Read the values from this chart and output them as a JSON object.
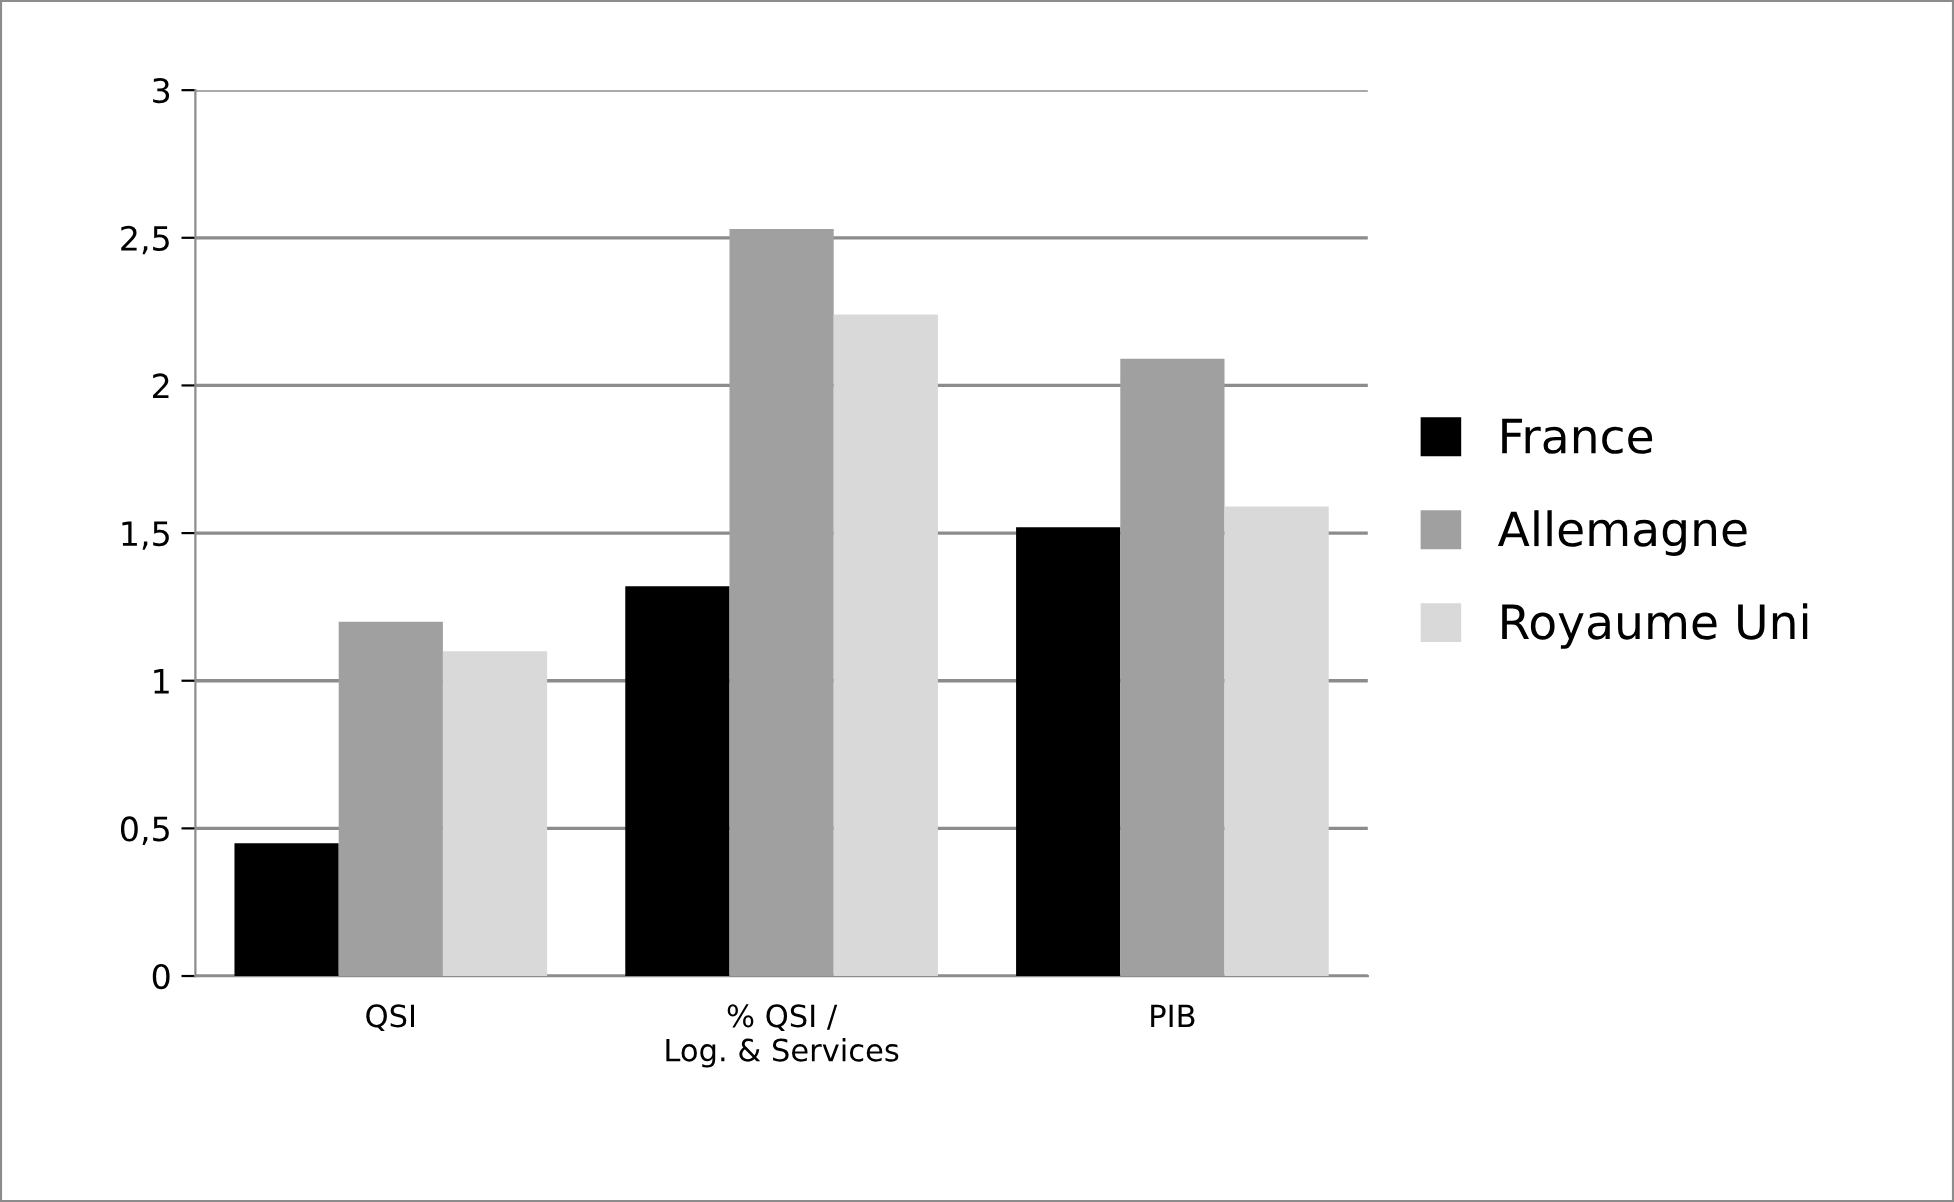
{
  "chart_data": {
    "type": "bar",
    "categories": [
      "QSI",
      "% QSI /\nLog. & Services",
      "PIB"
    ],
    "series": [
      {
        "name": "France",
        "color": "#000000",
        "values": [
          0.45,
          1.32,
          1.52
        ]
      },
      {
        "name": "Allemagne",
        "color": "#a0a0a0",
        "values": [
          1.2,
          2.53,
          2.09
        ]
      },
      {
        "name": "Royaume Uni",
        "color": "#d9d9d9",
        "values": [
          1.1,
          2.24,
          1.59
        ]
      }
    ],
    "ylim": [
      0,
      3
    ],
    "yticks": [
      0,
      {
        "value": 0.5,
        "label": "0,5"
      },
      1,
      {
        "value": 1.5,
        "label": "1,5"
      },
      2,
      {
        "value": 2.5,
        "label": "2,5"
      },
      3
    ],
    "grid": "y",
    "legend": "right"
  }
}
